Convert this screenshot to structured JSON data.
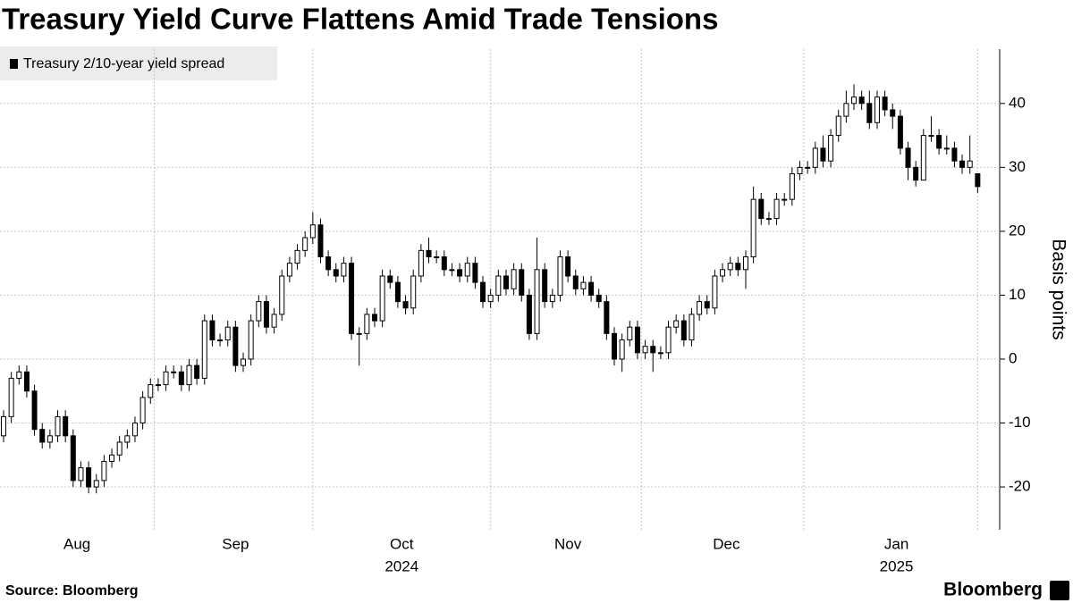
{
  "chart_data": {
    "type": "candlestick",
    "title": "Treasury Yield Curve Flattens Amid Trade Tensions",
    "series": [
      {
        "name": "Treasury 2/10-year yield spread",
        "color": "#000000",
        "open": [
          -12,
          -9,
          -3,
          -2,
          -5,
          -11,
          -13,
          -12,
          -9,
          -12,
          -19,
          -17,
          -20,
          -19,
          -16,
          -15,
          -13,
          -12,
          -10,
          -6,
          -4,
          -4,
          -2,
          -2,
          -4,
          -1,
          -3,
          6,
          3,
          3,
          5,
          -1,
          0,
          6,
          9,
          5,
          7,
          13,
          15,
          17,
          19,
          21,
          16,
          14,
          13,
          15,
          4,
          4,
          7,
          6,
          13,
          12,
          9,
          8,
          13,
          17,
          16,
          16,
          14,
          14,
          13,
          15,
          12,
          9,
          10,
          13,
          11,
          14,
          10,
          4,
          14,
          9,
          10,
          16,
          13,
          11,
          12,
          10,
          9,
          4,
          0,
          3,
          5,
          1,
          2,
          1,
          1,
          5,
          6,
          3,
          7,
          9,
          8,
          13,
          14,
          15,
          14,
          16,
          25,
          22,
          22,
          25,
          25,
          29,
          30,
          30,
          33,
          31,
          35,
          38,
          40,
          41,
          40,
          37,
          41,
          39,
          38,
          33,
          30,
          28,
          35,
          35,
          33,
          33,
          31,
          30,
          29
        ],
        "high": [
          -8,
          -2,
          -1,
          -1,
          -4,
          -10,
          -11,
          -8,
          -8,
          -11,
          -16,
          -16,
          -18,
          -15,
          -14,
          -12,
          -11,
          -9,
          -5,
          -3,
          -3,
          -1,
          -1,
          -1,
          0,
          0,
          7,
          7,
          4,
          6,
          6,
          1,
          7,
          10,
          10,
          8,
          14,
          16,
          18,
          20,
          23,
          22,
          17,
          15,
          16,
          16,
          5,
          8,
          8,
          14,
          14,
          13,
          10,
          14,
          18,
          19,
          17,
          17,
          15,
          15,
          16,
          16,
          13,
          11,
          14,
          14,
          15,
          15,
          11,
          19,
          15,
          11,
          17,
          17,
          14,
          13,
          13,
          11,
          10,
          5,
          4,
          6,
          6,
          3,
          3,
          2,
          6,
          7,
          7,
          8,
          10,
          10,
          14,
          15,
          16,
          16,
          17,
          27,
          26,
          23,
          26,
          26,
          30,
          31,
          31,
          34,
          35,
          36,
          39,
          42,
          43,
          42,
          42,
          42,
          42,
          40,
          39,
          34,
          31,
          36,
          38,
          36,
          35,
          34,
          32,
          35,
          29
        ],
        "low": [
          -13,
          -10,
          -4,
          -6,
          -12,
          -14,
          -14,
          -13,
          -13,
          -20,
          -20,
          -21,
          -21,
          -20,
          -17,
          -16,
          -14,
          -13,
          -11,
          -7,
          -5,
          -5,
          -3,
          -5,
          -5,
          -4,
          -4,
          2,
          2,
          2,
          -2,
          -2,
          -1,
          5,
          4,
          4,
          6,
          12,
          14,
          16,
          18,
          15,
          13,
          12,
          12,
          3,
          -1,
          3,
          5,
          5,
          11,
          8,
          7,
          7,
          12,
          15,
          15,
          13,
          13,
          12,
          12,
          11,
          8,
          8,
          9,
          10,
          10,
          9,
          3,
          3,
          8,
          8,
          9,
          12,
          10,
          10,
          9,
          8,
          3,
          -1,
          -2,
          2,
          0,
          0,
          -2,
          0,
          0,
          4,
          2,
          2,
          6,
          7,
          7,
          12,
          13,
          13,
          11,
          15,
          21,
          21,
          21,
          24,
          24,
          28,
          29,
          29,
          30,
          30,
          34,
          37,
          39,
          39,
          36,
          36,
          38,
          36,
          32,
          28,
          27,
          28,
          34,
          32,
          32,
          30,
          29,
          29,
          26
        ],
        "close": [
          -9,
          -3,
          -2,
          -5,
          -11,
          -13,
          -12,
          -9,
          -12,
          -19,
          -17,
          -20,
          -19,
          -16,
          -15,
          -13,
          -12,
          -10,
          -6,
          -4,
          -4,
          -2,
          -2,
          -4,
          -1,
          -3,
          6,
          3,
          3,
          5,
          -1,
          0,
          6,
          9,
          5,
          7,
          13,
          15,
          17,
          19,
          21,
          16,
          14,
          13,
          15,
          4,
          4,
          7,
          6,
          13,
          12,
          9,
          8,
          13,
          17,
          16,
          16,
          14,
          14,
          13,
          15,
          12,
          9,
          10,
          13,
          11,
          14,
          10,
          4,
          14,
          9,
          10,
          16,
          13,
          11,
          12,
          10,
          9,
          4,
          0,
          3,
          5,
          1,
          2,
          1,
          1,
          5,
          6,
          3,
          7,
          9,
          8,
          13,
          14,
          15,
          14,
          16,
          25,
          22,
          22,
          25,
          25,
          29,
          30,
          30,
          33,
          31,
          35,
          38,
          40,
          41,
          40,
          37,
          41,
          39,
          38,
          33,
          30,
          28,
          35,
          35,
          33,
          33,
          31,
          30,
          31,
          27
        ]
      }
    ],
    "xticks": [
      {
        "value": 9.5,
        "label": "Aug"
      },
      {
        "value": 30,
        "label": "Sep"
      },
      {
        "value": 51.5,
        "label": "Oct"
      },
      {
        "value": 73,
        "label": "Nov"
      },
      {
        "value": 93.5,
        "label": "Dec"
      },
      {
        "value": 115.5,
        "label": "Jan"
      }
    ],
    "xgrid": [
      19.5,
      40,
      63,
      82.5,
      103.5,
      126
    ],
    "year_labels": [
      {
        "value": 51.5,
        "label": "2024"
      },
      {
        "value": 115.5,
        "label": "2025"
      }
    ],
    "ylabel": "Basis points",
    "ylim": [
      -26.7,
      48.5
    ],
    "yticks": [
      -20,
      -10,
      0,
      10,
      20,
      30,
      40
    ],
    "grid": true,
    "source": "Source: Bloomberg",
    "brand": "Bloomberg"
  }
}
